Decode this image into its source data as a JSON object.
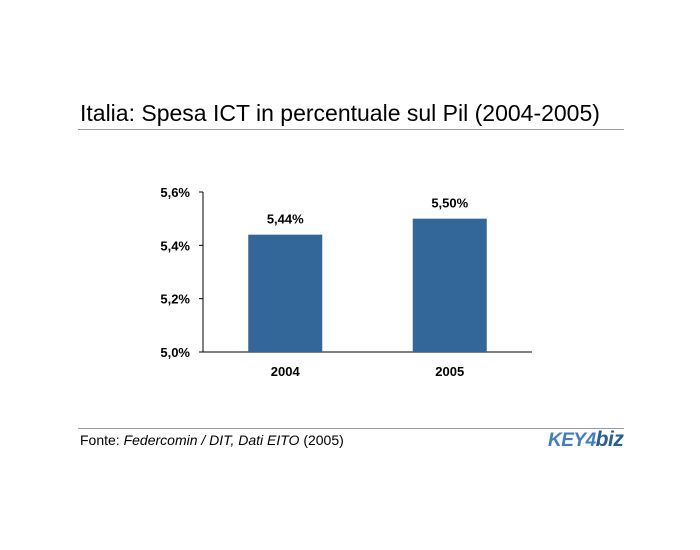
{
  "slide": {
    "title": "Italia: Spesa ICT in percentuale sul Pil (2004-2005)"
  },
  "source": {
    "prefix": "Fonte: ",
    "name": "Federcomin / DIT, Dati EITO",
    "year": " (2005)"
  },
  "logo": {
    "part1": "KEY",
    "part2": "4",
    "part3": "biz"
  },
  "colors": {
    "bar": "#336699"
  },
  "chart_data": {
    "type": "bar",
    "title": "",
    "xlabel": "",
    "ylabel": "",
    "categories": [
      "2004",
      "2005"
    ],
    "values": [
      5.44,
      5.5
    ],
    "data_labels": [
      "5,44%",
      "5,50%"
    ],
    "ylim": [
      5.0,
      5.6
    ],
    "yticks": [
      5.0,
      5.2,
      5.4,
      5.6
    ],
    "ytick_labels": [
      "5,0%",
      "5,2%",
      "5,4%",
      "5,6%"
    ],
    "grid": false,
    "legend": "none"
  }
}
